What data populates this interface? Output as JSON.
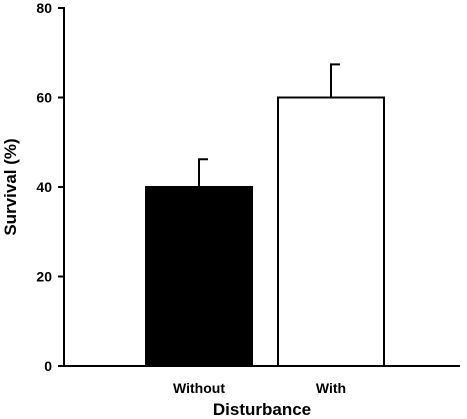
{
  "chart_data": {
    "type": "bar",
    "title": "",
    "xlabel": "Disturbance",
    "ylabel": "Survival (%)",
    "categories": [
      "Without",
      "With"
    ],
    "values": [
      40,
      60
    ],
    "errors": [
      6.2,
      7.4
    ],
    "bar_fills": [
      "#000000",
      "#ffffff"
    ],
    "ylim": [
      0,
      80
    ],
    "yticks": [
      0,
      20,
      40,
      60,
      80
    ],
    "grid": false,
    "legend": "none"
  }
}
